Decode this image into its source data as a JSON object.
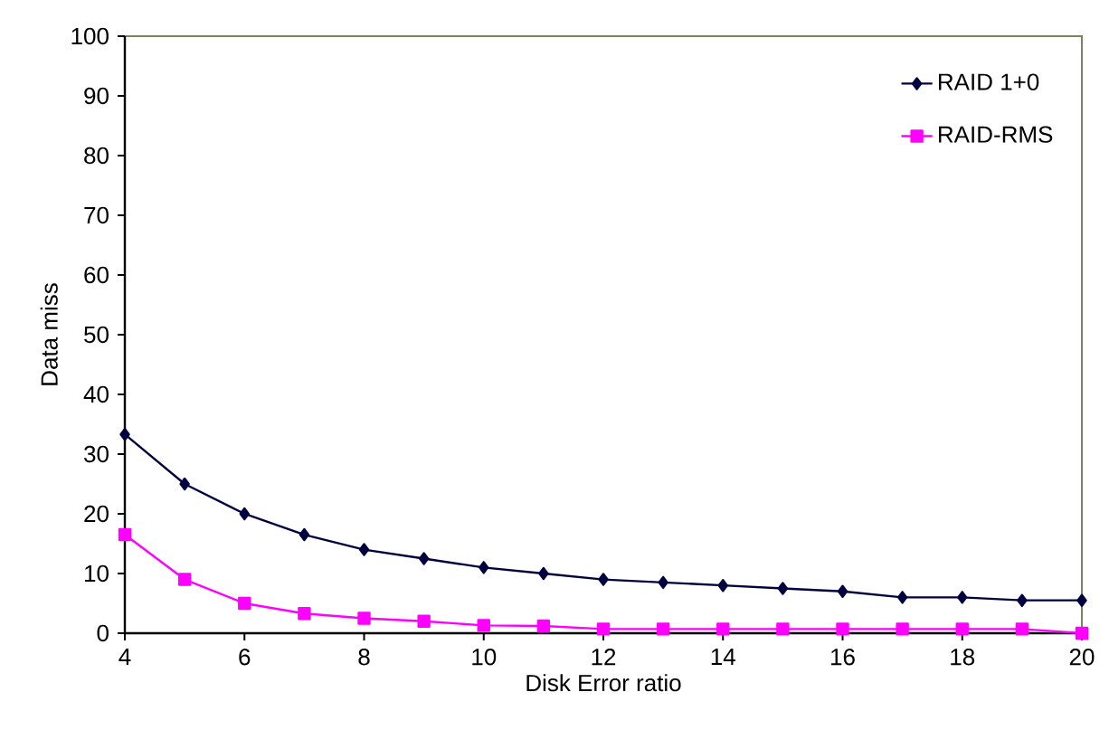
{
  "chart_data": {
    "type": "line",
    "xlabel": "Disk Error ratio",
    "ylabel": "Data miss",
    "x": [
      4,
      5,
      6,
      7,
      8,
      9,
      10,
      11,
      12,
      13,
      14,
      15,
      16,
      17,
      18,
      19,
      20
    ],
    "series": [
      {
        "name": "RAID 1+0",
        "color": "#000040",
        "marker": "diamond",
        "values": [
          33.3,
          25,
          20,
          16.5,
          14,
          12.5,
          11,
          10,
          9,
          8.5,
          8,
          7.5,
          7,
          6,
          6,
          5.5,
          5.5
        ]
      },
      {
        "name": "RAID-RMS",
        "color": "#ff00ff",
        "marker": "square",
        "values": [
          16.5,
          9,
          5,
          3.3,
          2.5,
          2,
          1.3,
          1.2,
          0.7,
          0.7,
          0.7,
          0.7,
          0.7,
          0.7,
          0.7,
          0.7,
          0
        ]
      }
    ],
    "xlim": [
      4,
      20
    ],
    "xticks": [
      4,
      6,
      8,
      10,
      12,
      14,
      16,
      18,
      20
    ],
    "ylim": [
      0,
      100
    ],
    "yticks": [
      0,
      10,
      20,
      30,
      40,
      50,
      60,
      70,
      80,
      90,
      100
    ],
    "grid": false,
    "legend": "top right",
    "line_style": "solid"
  }
}
